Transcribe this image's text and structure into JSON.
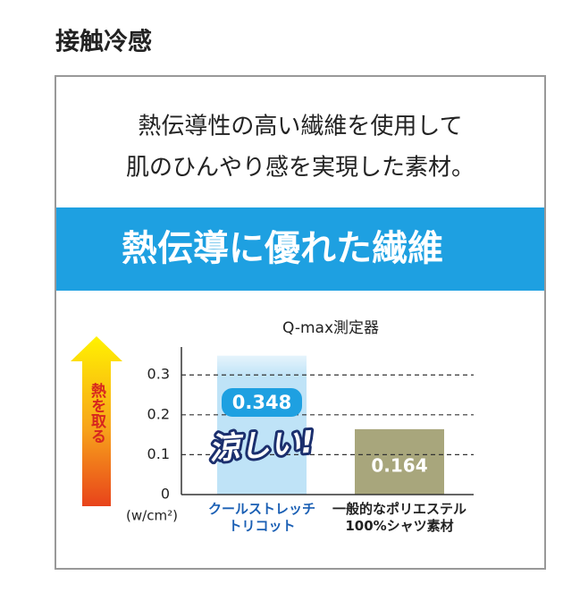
{
  "header": {
    "title": "接触冷感"
  },
  "intro": {
    "lines": [
      "熱伝導性の高い繊維を使用して",
      "肌のひんやり感を実現した素材。"
    ]
  },
  "banner": {
    "text": "熱伝導に優れた繊維"
  },
  "chart_data": {
    "type": "bar",
    "title": "Q-max測定器",
    "categories": [
      "クールストレッチ\nトリコット",
      "一般的なポリエステル\n100%シャツ素材"
    ],
    "values": [
      0.348,
      0.164
    ],
    "colors": [
      "#bfe3f7",
      "#a8a67c"
    ],
    "ylim": [
      0,
      0.37
    ],
    "yticks": [
      0,
      0.1,
      0.2,
      0.3
    ],
    "grid": true,
    "unit_label": "(w/cm²)",
    "arrow_label": "熱を取る",
    "annotation": "涼しい!"
  }
}
